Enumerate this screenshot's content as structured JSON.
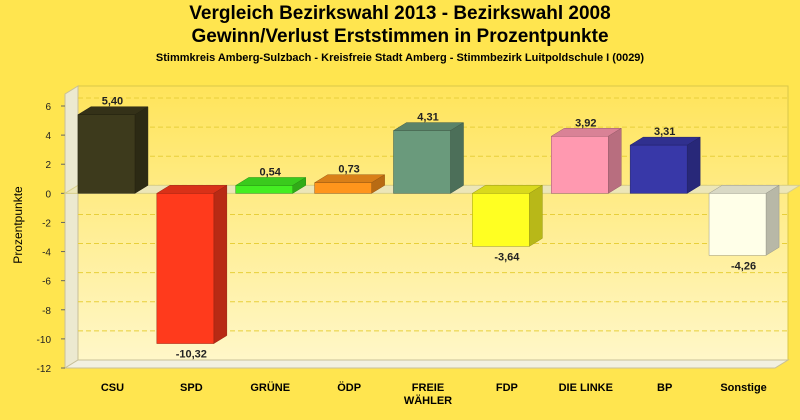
{
  "chart_data": {
    "type": "bar",
    "title": "Vergleich Bezirkswahl 2013 - Bezirkswahl 2008",
    "subtitle": "Gewinn/Verlust Erststimmen in Prozentpunkte",
    "caption": "Stimmkreis Amberg-Sulzbach - Kreisfreie Stadt Amberg - Stimmbezirk Luitpoldschule I (0029)",
    "ylabel": "Prozentpunkte",
    "xlabel": "",
    "ylim": [
      -12,
      6
    ],
    "yticks": [
      6,
      4,
      2,
      0,
      -2,
      -4,
      -6,
      -8,
      -10,
      -12
    ],
    "categories": [
      "CSU",
      "SPD",
      "GRÜNE",
      "ÖDP",
      "FREIE|WÄHLER",
      "FDP",
      "DIE LINKE",
      "BP",
      "Sonstige"
    ],
    "values": [
      5.4,
      -10.32,
      0.54,
      0.73,
      4.31,
      -3.64,
      3.92,
      3.31,
      -4.26
    ],
    "value_labels": [
      "5,40",
      "-10,32",
      "0,54",
      "0,73",
      "4,31",
      "-3,64",
      "3,92",
      "3,31",
      "-4,26"
    ],
    "colors": [
      "#3d3a1c",
      "#ff3a1c",
      "#44ee22",
      "#ff951c",
      "#6a9a7c",
      "#ffff22",
      "#ff99b0",
      "#3838a8",
      "#ffffe8"
    ],
    "grid": true
  }
}
